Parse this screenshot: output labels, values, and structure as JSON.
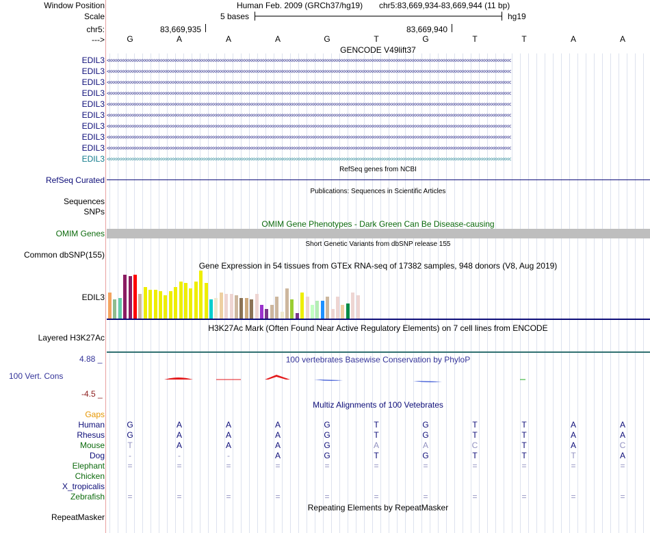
{
  "header": {
    "window_position_label": "Window Position",
    "assembly_text": "Human Feb. 2009 (GRCh37/hg19)",
    "position_text": "chr5:83,669,934-83,669,944 (11 bp)",
    "scale_label": "Scale",
    "scale_text": "5 bases",
    "db_text": "hg19",
    "chrom_label": "chr5:",
    "coord1": "83,669,935",
    "coord2": "83,669,940",
    "strand_label": "--->"
  },
  "sequence": [
    "G",
    "A",
    "A",
    "A",
    "G",
    "T",
    "G",
    "T",
    "T",
    "A",
    "A"
  ],
  "gencode": {
    "title": "GENCODE V49lift37",
    "rows": [
      "EDIL3",
      "EDIL3",
      "EDIL3",
      "EDIL3",
      "EDIL3",
      "EDIL3",
      "EDIL3",
      "EDIL3",
      "EDIL3",
      "EDIL3"
    ],
    "color": "#0c0c78",
    "last_color": "#117a8b"
  },
  "refseq": {
    "title": "RefSeq genes from NCBI",
    "label": "RefSeq Curated"
  },
  "publications": {
    "title": "Publications: Sequences in Scientific Articles",
    "label1": "Sequences",
    "label2": "SNPs"
  },
  "omim": {
    "title": "OMIM Gene Phenotypes - Dark Green Can Be Disease-causing",
    "label": "OMIM Genes",
    "color": "#0c6a0c"
  },
  "dbsnp": {
    "title": "Short Genetic Variants from dbSNP release 155",
    "label": "Common dbSNP(155)"
  },
  "gtex": {
    "title": "Gene Expression in 54 tissues from GTEx RNA-seq of 17382 samples, 948 donors (V8, Aug 2019)",
    "label": "EDIL3",
    "bars": [
      {
        "c": "#f4a460",
        "v": 0.38
      },
      {
        "c": "#8fbc8f",
        "v": 0.28
      },
      {
        "c": "#66cdaa",
        "v": 0.3
      },
      {
        "c": "#8b1c62",
        "v": 0.64
      },
      {
        "c": "#8b1c62",
        "v": 0.62
      },
      {
        "c": "#ff0000",
        "v": 0.64
      },
      {
        "c": "#cdb79e",
        "v": 0.36
      },
      {
        "c": "#eeee00",
        "v": 0.46
      },
      {
        "c": "#eeee00",
        "v": 0.42
      },
      {
        "c": "#eeee00",
        "v": 0.42
      },
      {
        "c": "#eeee00",
        "v": 0.4
      },
      {
        "c": "#eeee00",
        "v": 0.34
      },
      {
        "c": "#eeee00",
        "v": 0.4
      },
      {
        "c": "#eeee00",
        "v": 0.46
      },
      {
        "c": "#eeee00",
        "v": 0.54
      },
      {
        "c": "#eeee00",
        "v": 0.52
      },
      {
        "c": "#eeee00",
        "v": 0.44
      },
      {
        "c": "#eeee00",
        "v": 0.54
      },
      {
        "c": "#eeee00",
        "v": 0.7
      },
      {
        "c": "#eeee00",
        "v": 0.52
      },
      {
        "c": "#00cdcd",
        "v": 0.28
      },
      {
        "c": "#eee8cd",
        "v": 0.3
      },
      {
        "c": "#eecfa1",
        "v": 0.38
      },
      {
        "c": "#eed5d2",
        "v": 0.36
      },
      {
        "c": "#eed5d2",
        "v": 0.36
      },
      {
        "c": "#cdb79e",
        "v": 0.34
      },
      {
        "c": "#8b7355",
        "v": 0.3
      },
      {
        "c": "#cdaa7d",
        "v": 0.3
      },
      {
        "c": "#8b7355",
        "v": 0.28
      },
      {
        "c": "#eed5d2",
        "v": 0.36
      },
      {
        "c": "#9a32cd",
        "v": 0.2
      },
      {
        "c": "#7a378b",
        "v": 0.14
      },
      {
        "c": "#cdb79e",
        "v": 0.2
      },
      {
        "c": "#cdb79e",
        "v": 0.32
      },
      {
        "c": "#eee8cd",
        "v": 0.1
      },
      {
        "c": "#cdb79e",
        "v": 0.44
      },
      {
        "c": "#9acd32",
        "v": 0.28
      },
      {
        "c": "#7a378b",
        "v": 0.08
      },
      {
        "c": "#eeee00",
        "v": 0.38
      },
      {
        "c": "#eed5d2",
        "v": 0.32
      },
      {
        "c": "#c1ffc1",
        "v": 0.2
      },
      {
        "c": "#b4eeb4",
        "v": 0.26
      },
      {
        "c": "#1e90ff",
        "v": 0.26
      },
      {
        "c": "#cdb79e",
        "v": 0.32
      },
      {
        "c": "#eed5d2",
        "v": 0.14
      },
      {
        "c": "#eed5d2",
        "v": 0.32
      },
      {
        "c": "#eecfa1",
        "v": 0.2
      },
      {
        "c": "#008b45",
        "v": 0.22
      },
      {
        "c": "#eed5d2",
        "v": 0.38
      },
      {
        "c": "#eed5d2",
        "v": 0.34
      }
    ]
  },
  "h3k27ac": {
    "title": "H3K27Ac Mark (Often Found Near Active Regulatory Elements) on 7 cell lines from ENCODE",
    "label": "Layered H3K27Ac"
  },
  "phylop": {
    "title": "100 vertebrates Basewise Conservation by PhyloP",
    "label": "100 Vert. Cons",
    "ymax": "4.88 _",
    "ymin": "-4.5 _",
    "title_color": "#333399"
  },
  "multiz": {
    "title": "Multiz Alignments of 100 Vetebrates",
    "gaps_label": "Gaps",
    "species": [
      {
        "name": "Human",
        "color": "#0c0c78",
        "bases": [
          "G",
          "A",
          "A",
          "A",
          "G",
          "T",
          "G",
          "T",
          "T",
          "A",
          "A"
        ]
      },
      {
        "name": "Rhesus",
        "color": "#0c0c78",
        "bases": [
          "G",
          "A",
          "A",
          "A",
          "G",
          "T",
          "G",
          "T",
          "T",
          "A",
          "A"
        ]
      },
      {
        "name": "Mouse",
        "color": "#0c6a0c",
        "bases": [
          "T",
          "A",
          "A",
          "A",
          "G",
          "A",
          "A",
          "C",
          "T",
          "A",
          "C"
        ]
      },
      {
        "name": "Dog",
        "color": "#0c0c78",
        "bases": [
          "-",
          "-",
          "-",
          "A",
          "G",
          "T",
          "G",
          "T",
          "T",
          "T",
          "A"
        ]
      },
      {
        "name": "Elephant",
        "color": "#0c6a0c",
        "bases": [
          "=",
          "=",
          "=",
          "=",
          "=",
          "=",
          "=",
          "=",
          "=",
          "=",
          "="
        ]
      },
      {
        "name": "Chicken",
        "color": "#0c6a0c",
        "bases": [
          "",
          "",
          "",
          "",
          "",
          "",
          "",
          "",
          "",
          "",
          ""
        ]
      },
      {
        "name": "X_tropicalis",
        "color": "#0c0c78",
        "bases": [
          "",
          "",
          "",
          "",
          "",
          "",
          "",
          "",
          "",
          "",
          ""
        ]
      },
      {
        "name": "Zebrafish",
        "color": "#0c6a0c",
        "bases": [
          "=",
          "=",
          "=",
          "=",
          "=",
          "=",
          "=",
          "=",
          "=",
          "=",
          "="
        ]
      }
    ]
  },
  "repeatmasker": {
    "title": "Repeating Elements by RepeatMasker",
    "label": "RepeatMasker"
  }
}
